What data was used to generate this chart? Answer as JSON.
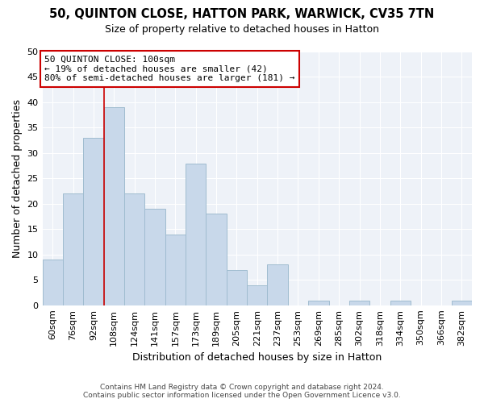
{
  "title": "50, QUINTON CLOSE, HATTON PARK, WARWICK, CV35 7TN",
  "subtitle": "Size of property relative to detached houses in Hatton",
  "xlabel": "Distribution of detached houses by size in Hatton",
  "ylabel": "Number of detached properties",
  "bar_labels": [
    "60sqm",
    "76sqm",
    "92sqm",
    "108sqm",
    "124sqm",
    "141sqm",
    "157sqm",
    "173sqm",
    "189sqm",
    "205sqm",
    "221sqm",
    "237sqm",
    "253sqm",
    "269sqm",
    "285sqm",
    "302sqm",
    "318sqm",
    "334sqm",
    "350sqm",
    "366sqm",
    "382sqm"
  ],
  "bar_values": [
    9,
    22,
    33,
    39,
    22,
    19,
    14,
    28,
    18,
    7,
    4,
    8,
    0,
    1,
    0,
    1,
    0,
    1,
    0,
    0,
    1
  ],
  "bar_color": "#c8d8ea",
  "bar_edge_color": "#a0bcd0",
  "reference_line_color": "#cc0000",
  "annotation_line1": "50 QUINTON CLOSE: 100sqm",
  "annotation_line2": "← 19% of detached houses are smaller (42)",
  "annotation_line3": "80% of semi-detached houses are larger (181) →",
  "annotation_box_color": "#ffffff",
  "annotation_box_edge": "#cc0000",
  "ylim": [
    0,
    50
  ],
  "yticks": [
    0,
    5,
    10,
    15,
    20,
    25,
    30,
    35,
    40,
    45,
    50
  ],
  "footer_line1": "Contains HM Land Registry data © Crown copyright and database right 2024.",
  "footer_line2": "Contains public sector information licensed under the Open Government Licence v3.0.",
  "bg_color": "#eef2f8",
  "grid_color": "#ffffff"
}
